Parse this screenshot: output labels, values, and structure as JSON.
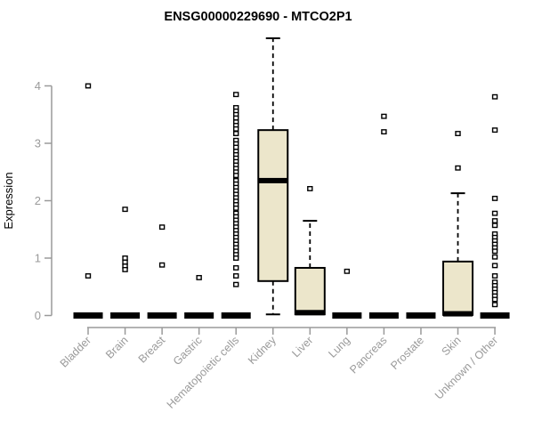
{
  "page": {
    "background": "#FFFFFF"
  },
  "chart_data": {
    "type": "boxplot",
    "title": "ENSG00000229690 - MTCO2P1",
    "ylabel": "Expression",
    "xlabel": "",
    "ylim": [
      0,
      4
    ],
    "yticks": [
      0,
      1,
      2,
      3,
      4
    ],
    "grid": false,
    "legend": false,
    "colors": {
      "box_fill": "#ECE6CB",
      "box_stroke": "#000000",
      "median": "#000000",
      "axis": "#9A9A9A",
      "tick_text": "#9A9A9A",
      "title_text": "#000000",
      "outlier_fill": "#FFFFFF",
      "outlier_stroke": "#000000"
    },
    "categories": [
      "Bladder",
      "Brain",
      "Breast",
      "Gastric",
      "Hematopoietic cells",
      "Kidney",
      "Liver",
      "Lung",
      "Pancreas",
      "Prostate",
      "Skin",
      "Unknown / Other"
    ],
    "boxes": [
      {
        "category": "Bladder",
        "q1": 0,
        "median": 0,
        "q3": 0,
        "whisker_low": 0,
        "whisker_high": 0,
        "outliers": [
          4.0,
          0.69
        ]
      },
      {
        "category": "Brain",
        "q1": 0,
        "median": 0,
        "q3": 0,
        "whisker_low": 0,
        "whisker_high": 0,
        "outliers": [
          1.85,
          1.0,
          0.93,
          0.86,
          0.8
        ]
      },
      {
        "category": "Breast",
        "q1": 0,
        "median": 0,
        "q3": 0,
        "whisker_low": 0,
        "whisker_high": 0,
        "outliers": [
          1.54,
          0.88
        ]
      },
      {
        "category": "Gastric",
        "q1": 0,
        "median": 0,
        "q3": 0,
        "whisker_low": 0,
        "whisker_high": 0,
        "outliers": [
          0.66
        ]
      },
      {
        "category": "Hematopoietic cells",
        "q1": 0,
        "median": 0,
        "q3": 0,
        "whisker_low": 0,
        "whisker_high": 0,
        "outliers": [
          3.85,
          3.62,
          3.56,
          3.5,
          3.44,
          3.37,
          3.31,
          3.25,
          3.17,
          3.05,
          2.99,
          2.93,
          2.86,
          2.8,
          2.74,
          2.68,
          2.62,
          2.56,
          2.5,
          2.44,
          2.35,
          2.29,
          2.23,
          2.17,
          2.11,
          2.05,
          1.99,
          1.93,
          1.87,
          1.78,
          1.72,
          1.66,
          1.6,
          1.54,
          1.48,
          1.42,
          1.36,
          1.3,
          1.24,
          1.18,
          1.12,
          1.06,
          1.0,
          0.83,
          0.69,
          0.54
        ]
      },
      {
        "category": "Kidney",
        "q1": 0.6,
        "median": 2.35,
        "q3": 3.23,
        "whisker_low": 0.02,
        "whisker_high": 4.83,
        "outliers": []
      },
      {
        "category": "Liver",
        "q1": 0.02,
        "median": 0.05,
        "q3": 0.83,
        "whisker_low": 0.02,
        "whisker_high": 1.65,
        "outliers": [
          2.21
        ]
      },
      {
        "category": "Lung",
        "q1": 0,
        "median": 0,
        "q3": 0,
        "whisker_low": 0,
        "whisker_high": 0,
        "outliers": [
          0.77
        ]
      },
      {
        "category": "Pancreas",
        "q1": 0,
        "median": 0,
        "q3": 0,
        "whisker_low": 0,
        "whisker_high": 0,
        "outliers": [
          3.47,
          3.2
        ]
      },
      {
        "category": "Prostate",
        "q1": 0,
        "median": 0,
        "q3": 0,
        "whisker_low": 0,
        "whisker_high": 0,
        "outliers": []
      },
      {
        "category": "Skin",
        "q1": 0.01,
        "median": 0.03,
        "q3": 0.94,
        "whisker_low": 0.01,
        "whisker_high": 2.13,
        "outliers": [
          3.17,
          2.57
        ]
      },
      {
        "category": "Unknown / Other",
        "q1": 0,
        "median": 0,
        "q3": 0,
        "whisker_low": 0,
        "whisker_high": 0,
        "outliers": [
          3.81,
          3.23,
          2.04,
          1.78,
          1.65,
          1.57,
          1.42,
          1.36,
          1.3,
          1.24,
          1.18,
          1.12,
          1.02,
          0.87,
          0.69,
          0.58,
          0.52,
          0.46,
          0.4,
          0.34,
          0.28,
          0.19
        ]
      }
    ]
  }
}
